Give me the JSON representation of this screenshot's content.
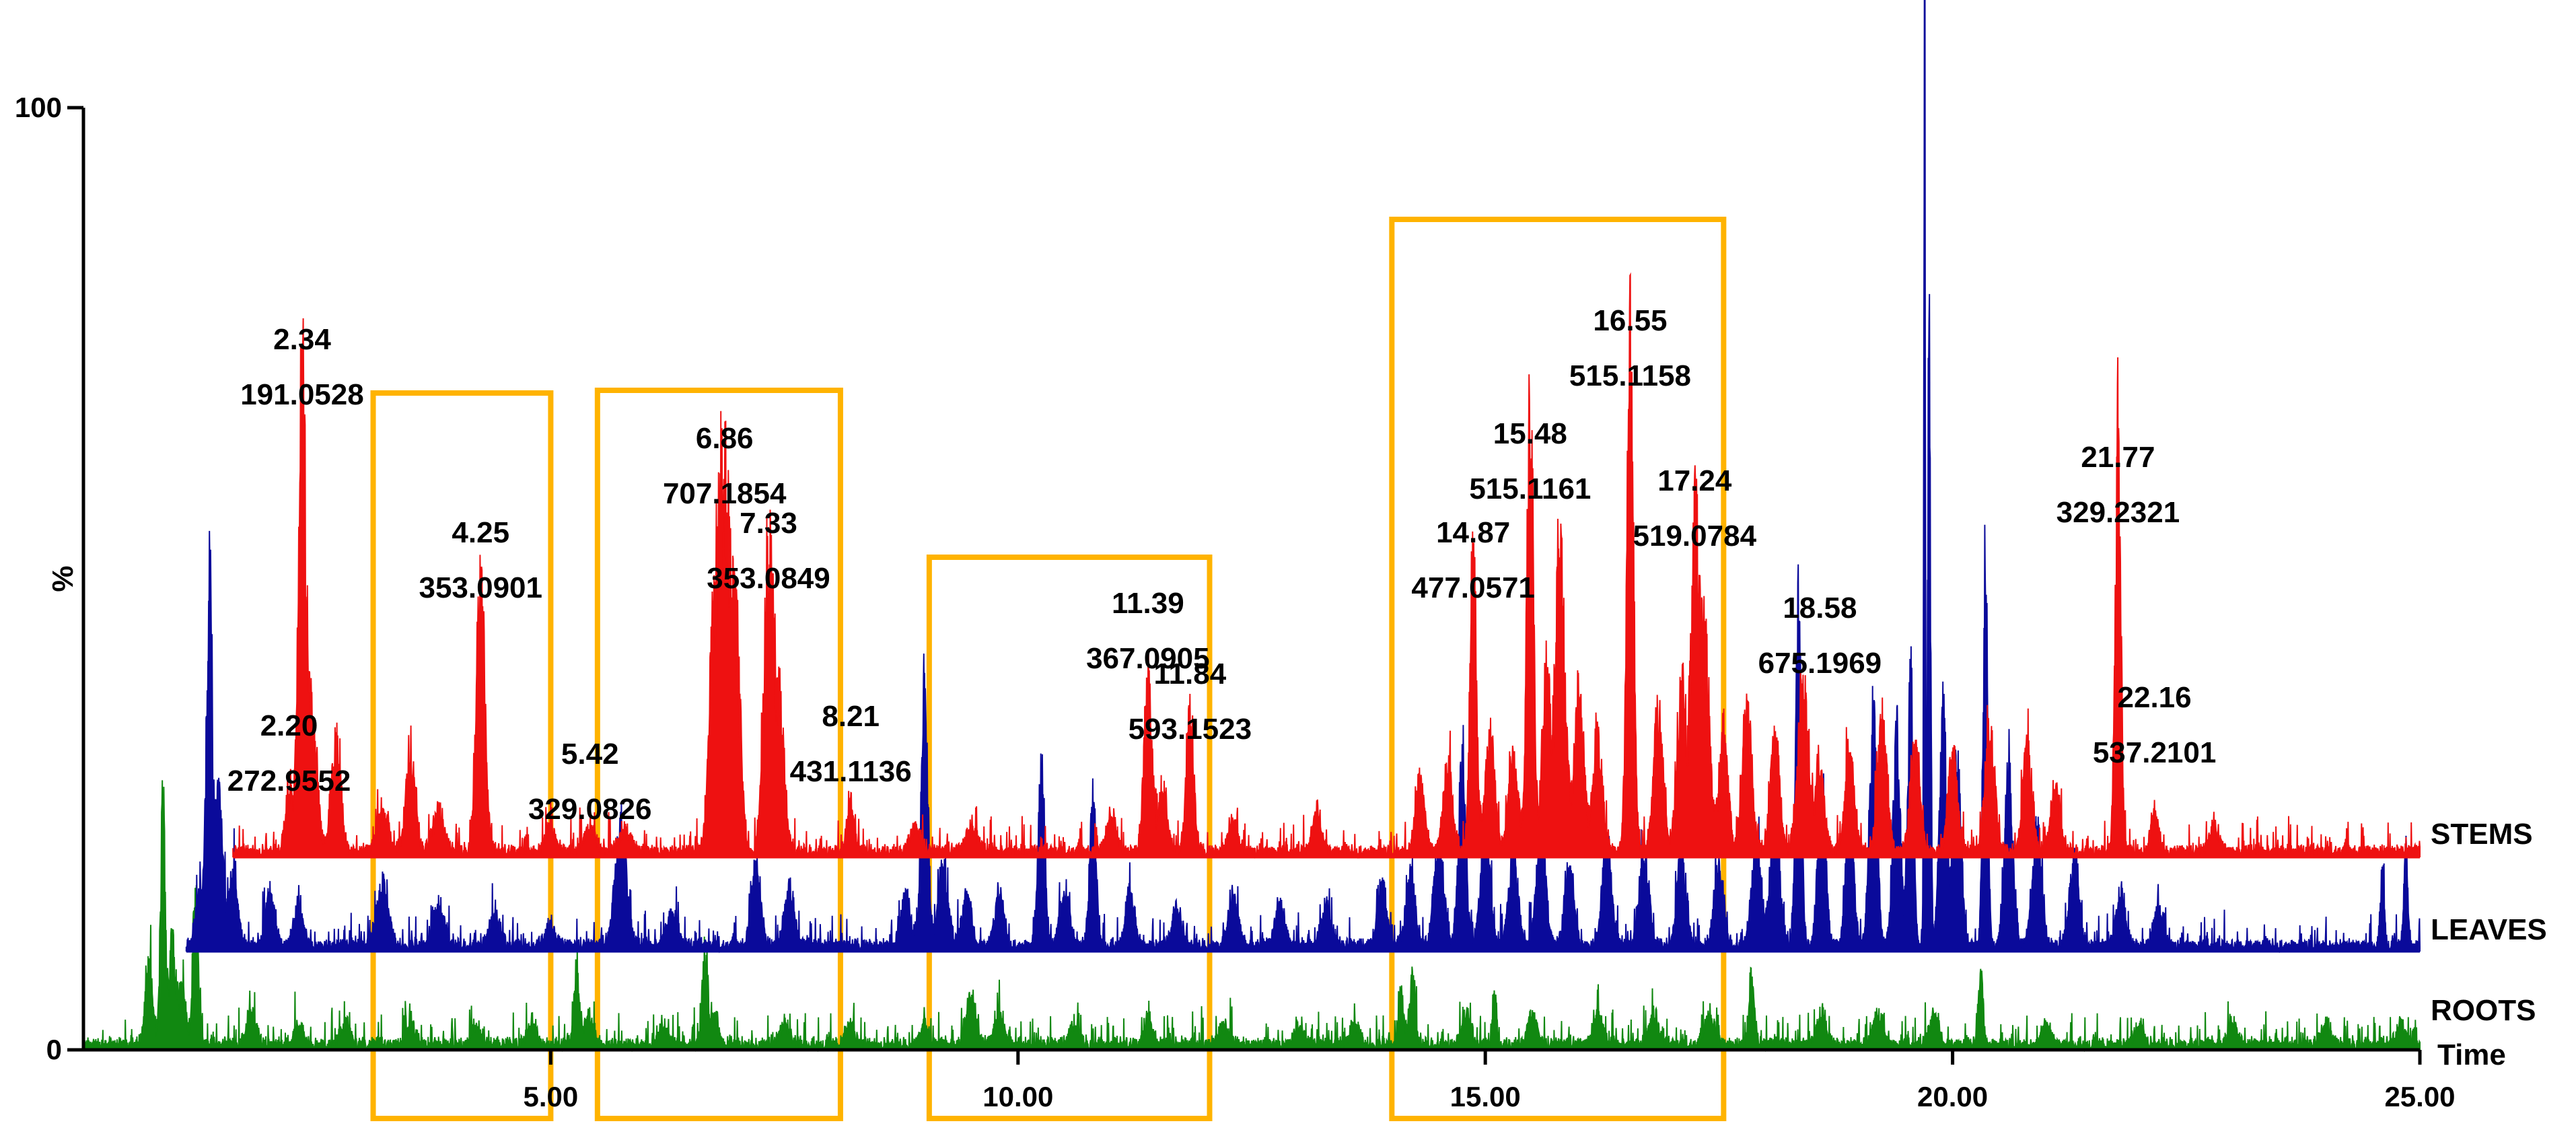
{
  "chart_data": {
    "type": "line",
    "title": "",
    "xlabel": "Time",
    "ylabel": "%",
    "xlim": [
      0,
      25
    ],
    "ylim": [
      0,
      100
    ],
    "x_ticks": [
      5,
      10,
      15,
      20,
      25
    ],
    "x_tick_labels": [
      "5.00",
      "10.00",
      "15.00",
      "20.00",
      "25.00"
    ],
    "y_ticks": [
      0,
      100
    ],
    "y_tick_labels": [
      "0",
      "100"
    ],
    "colors": {
      "stems": "#ee1111",
      "leaves": "#0a0a9a",
      "roots": "#118811",
      "highlight": "#ffb300",
      "axis": "#000000"
    },
    "series": [
      {
        "name": "STEMS",
        "label": "STEMS",
        "color": "#ee1111",
        "baseline": 20.5,
        "scale": 0.8,
        "start": 1.6,
        "end": 25.0,
        "peaks": [
          [
            2.2,
            8,
            0.04
          ],
          [
            2.34,
            58,
            0.04
          ],
          [
            2.45,
            16,
            0.05
          ],
          [
            2.7,
            14,
            0.05
          ],
          [
            3.2,
            5,
            0.06
          ],
          [
            3.5,
            12,
            0.05
          ],
          [
            3.8,
            5,
            0.06
          ],
          [
            4.25,
            34,
            0.045
          ],
          [
            5.0,
            3,
            0.05
          ],
          [
            5.42,
            3,
            0.06
          ],
          [
            5.8,
            3,
            0.06
          ],
          [
            6.75,
            30,
            0.05
          ],
          [
            6.86,
            45,
            0.05
          ],
          [
            6.98,
            28,
            0.05
          ],
          [
            7.33,
            37,
            0.05
          ],
          [
            7.45,
            18,
            0.05
          ],
          [
            8.21,
            6,
            0.04
          ],
          [
            8.9,
            3,
            0.06
          ],
          [
            9.5,
            3,
            0.06
          ],
          [
            11.0,
            5,
            0.05
          ],
          [
            11.39,
            22,
            0.04
          ],
          [
            11.55,
            7,
            0.05
          ],
          [
            11.84,
            17,
            0.04
          ],
          [
            12.3,
            4,
            0.05
          ],
          [
            13.2,
            5,
            0.05
          ],
          [
            14.3,
            9,
            0.05
          ],
          [
            14.6,
            11,
            0.05
          ],
          [
            14.87,
            36,
            0.035
          ],
          [
            15.05,
            15,
            0.05
          ],
          [
            15.3,
            12,
            0.05
          ],
          [
            15.48,
            56,
            0.035
          ],
          [
            15.65,
            24,
            0.04
          ],
          [
            15.8,
            40,
            0.05
          ],
          [
            16.0,
            20,
            0.05
          ],
          [
            16.2,
            15,
            0.05
          ],
          [
            16.55,
            62,
            0.035
          ],
          [
            16.85,
            17,
            0.05
          ],
          [
            17.1,
            20,
            0.05
          ],
          [
            17.24,
            40,
            0.04
          ],
          [
            17.35,
            26,
            0.05
          ],
          [
            17.55,
            14,
            0.05
          ],
          [
            17.8,
            18,
            0.05
          ],
          [
            18.1,
            14,
            0.05
          ],
          [
            18.4,
            22,
            0.05
          ],
          [
            18.58,
            10,
            0.05
          ],
          [
            18.9,
            12,
            0.05
          ],
          [
            19.25,
            16,
            0.05
          ],
          [
            19.6,
            14,
            0.05
          ],
          [
            20.0,
            12,
            0.05
          ],
          [
            20.4,
            15,
            0.05
          ],
          [
            20.8,
            13,
            0.05
          ],
          [
            21.1,
            8,
            0.05
          ],
          [
            21.77,
            53,
            0.03
          ],
          [
            22.16,
            5,
            0.04
          ],
          [
            22.8,
            3,
            0.05
          ]
        ]
      },
      {
        "name": "LEAVES",
        "label": "LEAVES",
        "color": "#0a0a9a",
        "baseline": 10.5,
        "scale": 1.0,
        "start": 1.1,
        "end": 25.0,
        "peaks": [
          [
            1.25,
            5,
            0.05
          ],
          [
            1.35,
            35,
            0.03
          ],
          [
            1.45,
            15,
            0.04
          ],
          [
            1.6,
            7,
            0.05
          ],
          [
            2.0,
            5,
            0.05
          ],
          [
            2.3,
            4,
            0.05
          ],
          [
            3.2,
            6,
            0.06
          ],
          [
            3.8,
            4,
            0.06
          ],
          [
            4.4,
            3,
            0.06
          ],
          [
            5.0,
            2,
            0.06
          ],
          [
            5.75,
            12,
            0.06
          ],
          [
            6.3,
            3,
            0.06
          ],
          [
            7.2,
            8,
            0.05
          ],
          [
            7.55,
            6,
            0.05
          ],
          [
            8.8,
            5,
            0.05
          ],
          [
            9.0,
            26,
            0.035
          ],
          [
            9.2,
            8,
            0.05
          ],
          [
            9.45,
            5,
            0.05
          ],
          [
            9.8,
            5,
            0.05
          ],
          [
            10.25,
            17,
            0.035
          ],
          [
            10.5,
            6,
            0.05
          ],
          [
            10.8,
            15,
            0.035
          ],
          [
            11.2,
            5,
            0.05
          ],
          [
            11.7,
            4,
            0.05
          ],
          [
            12.3,
            5,
            0.05
          ],
          [
            12.8,
            4,
            0.05
          ],
          [
            13.3,
            4,
            0.05
          ],
          [
            13.9,
            6,
            0.05
          ],
          [
            14.2,
            7,
            0.05
          ],
          [
            14.5,
            10,
            0.05
          ],
          [
            14.75,
            18,
            0.04
          ],
          [
            15.0,
            12,
            0.05
          ],
          [
            15.3,
            9,
            0.05
          ],
          [
            15.6,
            11,
            0.05
          ],
          [
            15.9,
            8,
            0.05
          ],
          [
            16.3,
            10,
            0.05
          ],
          [
            16.7,
            9,
            0.05
          ],
          [
            17.1,
            9,
            0.05
          ],
          [
            17.5,
            8,
            0.05
          ],
          [
            17.9,
            10,
            0.05
          ],
          [
            18.1,
            12,
            0.05
          ],
          [
            18.35,
            33,
            0.03
          ],
          [
            18.6,
            18,
            0.04
          ],
          [
            18.9,
            14,
            0.04
          ],
          [
            19.15,
            22,
            0.04
          ],
          [
            19.4,
            20,
            0.04
          ],
          [
            19.55,
            25,
            0.03
          ],
          [
            19.7,
            100,
            0.008
          ],
          [
            19.75,
            65,
            0.015
          ],
          [
            19.9,
            22,
            0.04
          ],
          [
            20.05,
            18,
            0.04
          ],
          [
            20.35,
            39,
            0.025
          ],
          [
            20.6,
            18,
            0.04
          ],
          [
            20.9,
            12,
            0.05
          ],
          [
            21.3,
            8,
            0.05
          ],
          [
            21.8,
            5,
            0.05
          ],
          [
            22.2,
            4,
            0.05
          ],
          [
            24.6,
            8,
            0.02
          ],
          [
            24.85,
            10,
            0.02
          ]
        ]
      },
      {
        "name": "ROOTS",
        "label": "ROOTS",
        "color": "#118811",
        "baseline": 0,
        "scale": 1.0,
        "start": 0.0,
        "end": 25.0,
        "peaks": [
          [
            0.7,
            8,
            0.04
          ],
          [
            0.85,
            24,
            0.025
          ],
          [
            0.95,
            12,
            0.03
          ],
          [
            1.05,
            6,
            0.04
          ],
          [
            1.2,
            15,
            0.03
          ],
          [
            1.8,
            3,
            0.05
          ],
          [
            2.3,
            2,
            0.05
          ],
          [
            2.8,
            2,
            0.05
          ],
          [
            3.5,
            2,
            0.05
          ],
          [
            4.2,
            2,
            0.05
          ],
          [
            4.8,
            2,
            0.05
          ],
          [
            5.28,
            7,
            0.03
          ],
          [
            5.4,
            3,
            0.04
          ],
          [
            6.2,
            2,
            0.05
          ],
          [
            6.65,
            9,
            0.03
          ],
          [
            6.75,
            3,
            0.04
          ],
          [
            7.5,
            2,
            0.05
          ],
          [
            8.2,
            2,
            0.05
          ],
          [
            9.0,
            2,
            0.05
          ],
          [
            9.5,
            5,
            0.05
          ],
          [
            9.8,
            3,
            0.05
          ],
          [
            10.6,
            2,
            0.05
          ],
          [
            11.4,
            2,
            0.05
          ],
          [
            12.2,
            2,
            0.05
          ],
          [
            13.0,
            2,
            0.05
          ],
          [
            13.6,
            2,
            0.05
          ],
          [
            14.1,
            5,
            0.03
          ],
          [
            14.22,
            7,
            0.03
          ],
          [
            14.8,
            3,
            0.05
          ],
          [
            15.1,
            6,
            0.02
          ],
          [
            15.5,
            3,
            0.05
          ],
          [
            16.2,
            3,
            0.05
          ],
          [
            16.8,
            3,
            0.05
          ],
          [
            17.4,
            3,
            0.05
          ],
          [
            17.85,
            7,
            0.03
          ],
          [
            18.6,
            3,
            0.05
          ],
          [
            19.2,
            3,
            0.05
          ],
          [
            19.8,
            3,
            0.05
          ],
          [
            20.3,
            8,
            0.025
          ],
          [
            21.0,
            2,
            0.05
          ],
          [
            22.0,
            2,
            0.05
          ],
          [
            23.0,
            2,
            0.05
          ],
          [
            24.0,
            2,
            0.05
          ],
          [
            24.8,
            2,
            0.05
          ]
        ]
      }
    ],
    "annotations": [
      {
        "time": "2.34",
        "mz": "191.0528",
        "x": 2.34,
        "y": 68.5
      },
      {
        "time": "2.20",
        "mz": "272.9552",
        "x": 2.2,
        "y": 27.5
      },
      {
        "time": "4.25",
        "mz": "353.0901",
        "x": 4.25,
        "y": 48.0
      },
      {
        "time": "5.42",
        "mz": "329.0826",
        "x": 5.42,
        "y": 24.5
      },
      {
        "time": "6.86",
        "mz": "707.1854",
        "x": 6.86,
        "y": 58.0
      },
      {
        "time": "7.33",
        "mz": "353.0849",
        "x": 7.33,
        "y": 49.0
      },
      {
        "time": "8.21",
        "mz": "431.1136",
        "x": 8.21,
        "y": 28.5
      },
      {
        "time": "11.39",
        "mz": "367.0905",
        "x": 11.39,
        "y": 40.5
      },
      {
        "time": "11.84",
        "mz": "593.1523",
        "x": 11.84,
        "y": 33.0
      },
      {
        "time": "14.87",
        "mz": "477.0571",
        "x": 14.87,
        "y": 48.0
      },
      {
        "time": "15.48",
        "mz": "515.1161",
        "x": 15.48,
        "y": 58.5
      },
      {
        "time": "16.55",
        "mz": "515.1158",
        "x": 16.55,
        "y": 70.5
      },
      {
        "time": "17.24",
        "mz": "519.0784",
        "x": 17.24,
        "y": 53.5
      },
      {
        "time": "18.58",
        "mz": "675.1969",
        "x": 18.58,
        "y": 40.0
      },
      {
        "time": "21.77",
        "mz": "329.2321",
        "x": 21.77,
        "y": 56.0
      },
      {
        "time": "22.16",
        "mz": "537.2101",
        "x": 22.16,
        "y": 30.5
      }
    ],
    "highlight_regions": [
      {
        "x0": 3.1,
        "x1": 5.0
      },
      {
        "x0": 5.5,
        "x1": 8.1
      },
      {
        "x0": 9.05,
        "x1": 12.05
      },
      {
        "x0": 14.0,
        "x1": 17.55
      }
    ]
  }
}
